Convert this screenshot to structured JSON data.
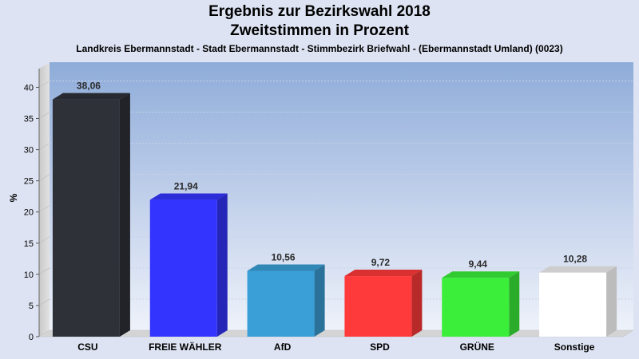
{
  "chart_data": {
    "type": "bar",
    "title": "Ergebnis zur Bezirkswahl 2018",
    "subtitle": "Zweitstimmen in Prozent",
    "caption": "Landkreis Ebermannstadt - Stadt Ebermannstadt - Stimmbezirk Briefwahl - (Ebermannstadt Umland) (0023)",
    "ylabel": "%",
    "xlabel": "",
    "ylim": [
      0,
      43
    ],
    "yticks": [
      0,
      5,
      10,
      15,
      20,
      25,
      30,
      35,
      40
    ],
    "categories": [
      "CSU",
      "FREIE WÄHLER",
      "AfD",
      "SPD",
      "GRÜNE",
      "Sonstige"
    ],
    "values": [
      38.06,
      21.94,
      10.56,
      9.72,
      9.44,
      10.28
    ],
    "value_labels": [
      "38,06",
      "21,94",
      "10,56",
      "9,72",
      "9,44",
      "10,28"
    ],
    "colors": [
      "#2e3138",
      "#3434ff",
      "#3a9fd6",
      "#ff3a3a",
      "#3aee3a",
      "#ffffff"
    ],
    "grid": true,
    "legend": "none"
  }
}
